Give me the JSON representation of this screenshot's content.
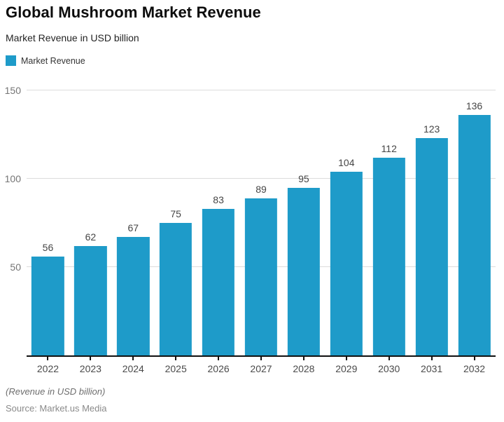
{
  "header": {
    "title": "Global Mushroom Market Revenue",
    "subtitle": "Market Revenue in USD billion"
  },
  "legend": {
    "label": "Market Revenue",
    "swatch_color": "#1E9BC9"
  },
  "chart_data": {
    "type": "bar",
    "title": "Global Mushroom Market Revenue",
    "subtitle": "Market Revenue in USD billion",
    "series_name": "Market Revenue",
    "categories": [
      "2022",
      "2023",
      "2024",
      "2025",
      "2026",
      "2027",
      "2028",
      "2029",
      "2030",
      "2031",
      "2032"
    ],
    "values": [
      56,
      62,
      67,
      75,
      83,
      89,
      95,
      104,
      112,
      123,
      136
    ],
    "xlabel": "",
    "ylabel": "Market Revenue in USD billion",
    "ylim": [
      0,
      150
    ],
    "yticks": [
      50,
      100,
      150
    ],
    "grid": true,
    "value_labels": true,
    "legend_position": "top-left",
    "bar_color": "#1E9BC9"
  },
  "colors": {
    "bar": "#1E9BC9",
    "gridline": "#DCDCDC",
    "axis_line": "#101010",
    "y_tick_label": "#757575",
    "x_tick_label": "#4A4A4A",
    "value_label": "#454545",
    "title": "#0C0C0C",
    "background": "#FFFFFF"
  },
  "footer": {
    "note": "(Revenue in USD billion)",
    "source": "Source: Market.us Media"
  }
}
